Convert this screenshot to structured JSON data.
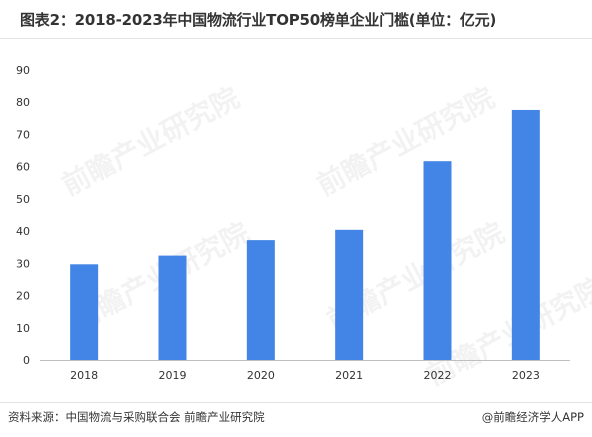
{
  "title": "图表2：2018-2023年中国物流行业TOP50榜单企业门槛(单位：亿元)",
  "source": "资料来源：中国物流与采购联合会 前瞻产业研究院",
  "credit": "@前瞻经济学人APP",
  "watermark": "前瞻产业研究院",
  "colors": {
    "bar": "#4285e6",
    "axis": "#bfbfbf",
    "text": "#333333"
  },
  "chart_data": {
    "type": "bar",
    "categories": [
      "2018",
      "2019",
      "2020",
      "2021",
      "2022",
      "2023"
    ],
    "values": [
      29.7,
      32.4,
      37.2,
      40.4,
      61.7,
      77.6
    ],
    "ylim": [
      0,
      90
    ],
    "yticks": [
      0,
      10,
      20,
      30,
      40,
      50,
      60,
      70,
      80,
      90
    ],
    "grid": false,
    "legend": "none"
  }
}
